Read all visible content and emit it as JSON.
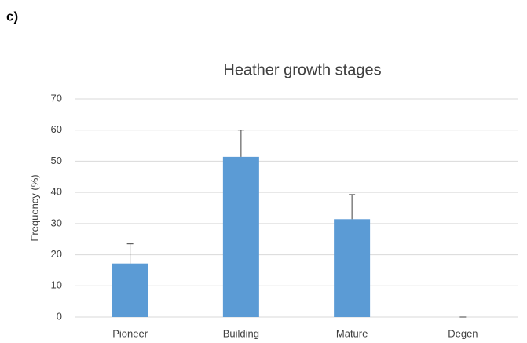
{
  "chart_data": {
    "type": "bar",
    "panel_label": "c)",
    "title": "Heather growth stages",
    "y_label": "Frequency (%)",
    "categories": [
      "Pioneer",
      "Building",
      "Mature",
      "Degen"
    ],
    "values": [
      17.2,
      51.4,
      31.4,
      0
    ],
    "errors": [
      6.3,
      8.6,
      7.9,
      0
    ],
    "color": "#5b9bd5",
    "ylim": [
      0,
      70
    ],
    "yticks": [
      0,
      10,
      20,
      30,
      40,
      50,
      60,
      70
    ],
    "grid": true
  }
}
